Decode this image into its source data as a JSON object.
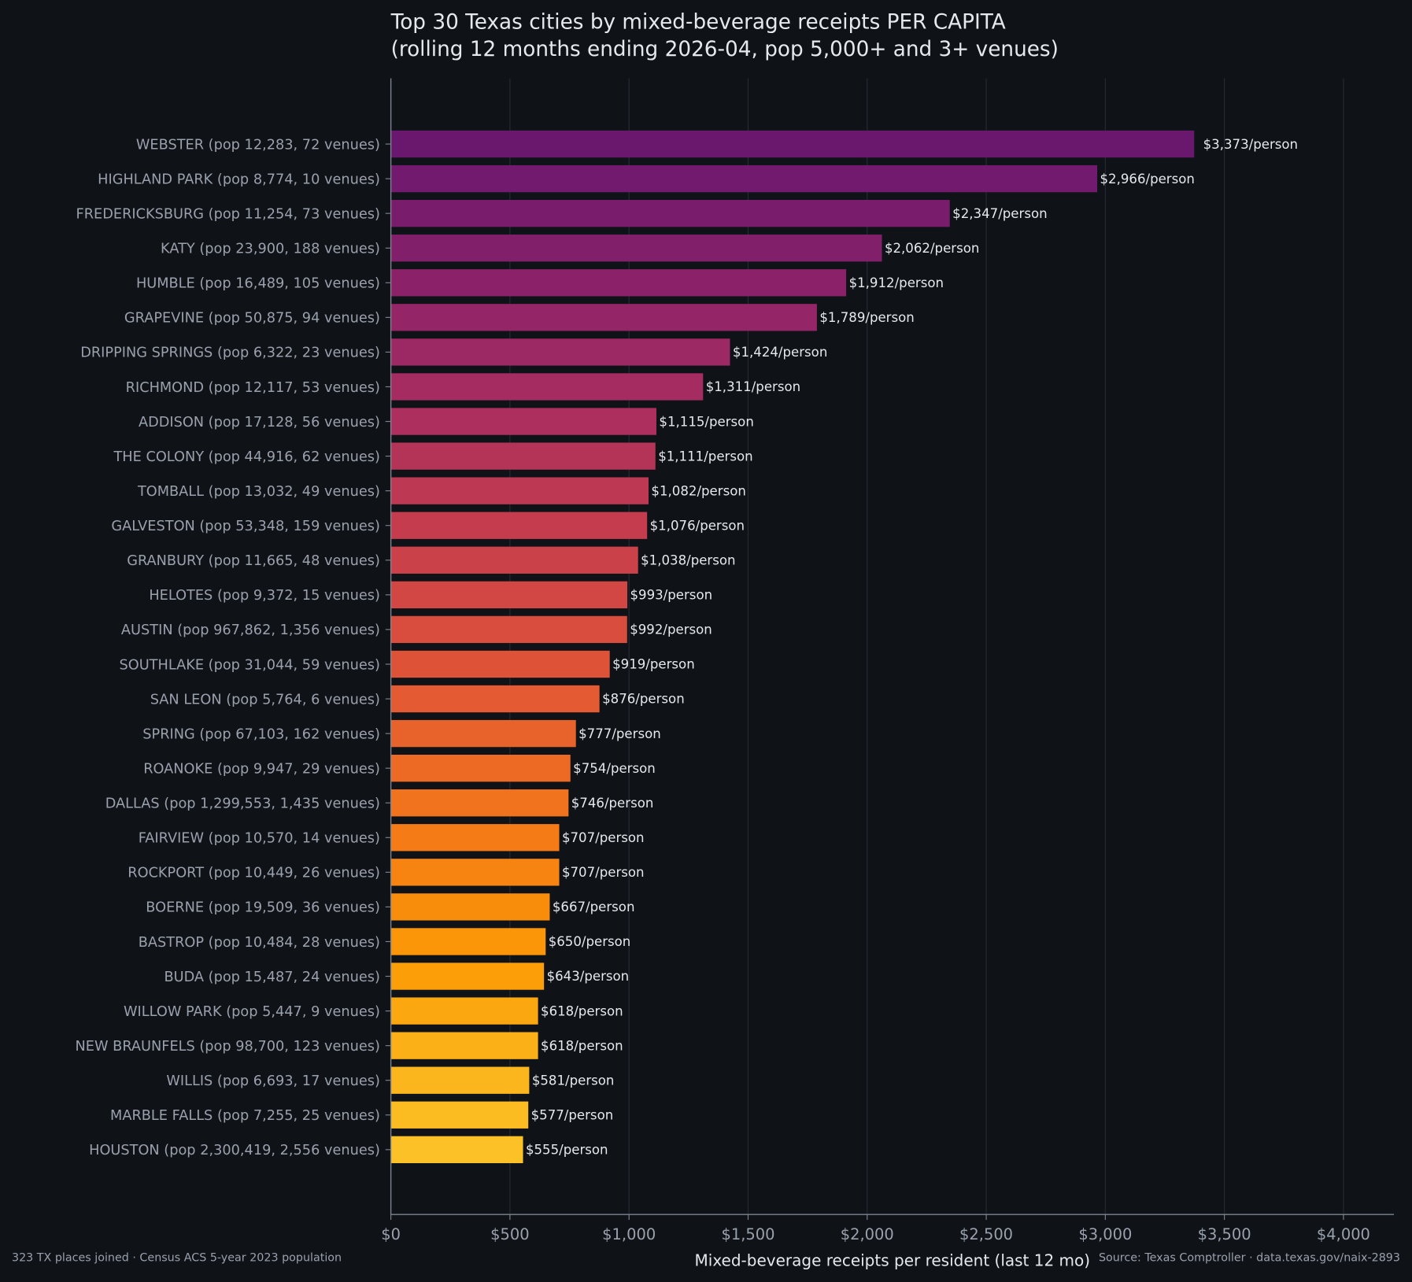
{
  "chart_data": {
    "type": "bar",
    "orientation": "horizontal",
    "title": "Top 30 Texas cities by mixed-beverage receipts PER CAPITA",
    "subtitle": "(rolling 12 months ending 2026-04, pop 5,000+ and 3+ venues)",
    "xlabel": "Mixed-beverage receipts per resident (last 12 mo)",
    "ylabel": "",
    "xlim": [
      0,
      4200
    ],
    "x_ticks": [
      0,
      500,
      1000,
      1500,
      2000,
      2500,
      3000,
      3500,
      4000
    ],
    "x_tick_labels": [
      "$0",
      "$500",
      "$1,000",
      "$1,500",
      "$2,000",
      "$2,500",
      "$3,000",
      "$3,500",
      "$4,000"
    ],
    "grid": "vertical",
    "categories": [
      "WEBSTER  (pop 12,283, 72 venues)",
      "HIGHLAND PARK  (pop 8,774, 10 venues)",
      "FREDERICKSBURG  (pop 11,254, 73 venues)",
      "KATY  (pop 23,900, 188 venues)",
      "HUMBLE  (pop 16,489, 105 venues)",
      "GRAPEVINE  (pop 50,875, 94 venues)",
      "DRIPPING SPRINGS  (pop 6,322, 23 venues)",
      "RICHMOND  (pop 12,117, 53 venues)",
      "ADDISON  (pop 17,128, 56 venues)",
      "THE COLONY  (pop 44,916, 62 venues)",
      "TOMBALL  (pop 13,032, 49 venues)",
      "GALVESTON  (pop 53,348, 159 venues)",
      "GRANBURY  (pop 11,665, 48 venues)",
      "HELOTES  (pop 9,372, 15 venues)",
      "AUSTIN  (pop 967,862, 1,356 venues)",
      "SOUTHLAKE  (pop 31,044, 59 venues)",
      "SAN LEON  (pop 5,764, 6 venues)",
      "SPRING  (pop 67,103, 162 venues)",
      "ROANOKE  (pop 9,947, 29 venues)",
      "DALLAS  (pop 1,299,553, 1,435 venues)",
      "FAIRVIEW  (pop 10,570, 14 venues)",
      "ROCKPORT  (pop 10,449, 26 venues)",
      "BOERNE  (pop 19,509, 36 venues)",
      "BASTROP  (pop 10,484, 28 venues)",
      "BUDA  (pop 15,487, 24 venues)",
      "WILLOW PARK  (pop 5,447, 9 venues)",
      "NEW BRAUNFELS  (pop 98,700, 123 venues)",
      "WILLIS  (pop 6,693, 17 venues)",
      "MARBLE FALLS  (pop 7,255, 25 venues)",
      "HOUSTON  (pop 2,300,419, 2,556 venues)"
    ],
    "values": [
      3373,
      2966,
      2347,
      2062,
      1912,
      1789,
      1424,
      1311,
      1115,
      1111,
      1082,
      1076,
      1038,
      993,
      992,
      919,
      876,
      777,
      754,
      746,
      707,
      707,
      667,
      650,
      643,
      618,
      618,
      581,
      577,
      555
    ],
    "data_labels": [
      "$3,373/person",
      "$2,966/person",
      "$2,347/person",
      "$2,062/person",
      "$1,912/person",
      "$1,789/person",
      "$1,424/person",
      "$1,311/person",
      "$1,115/person",
      "$1,111/person",
      "$1,082/person",
      "$1,076/person",
      "$1,038/person",
      "$993/person",
      "$992/person",
      "$919/person",
      "$876/person",
      "$777/person",
      "$754/person",
      "$746/person",
      "$707/person",
      "$707/person",
      "$667/person",
      "$650/person",
      "$643/person",
      "$618/person",
      "$618/person",
      "$581/person",
      "$577/person",
      "$555/person"
    ],
    "color_stops": [
      "#6a176e",
      "#7f1e6c",
      "#962666",
      "#ab2f5e",
      "#c13a50",
      "#d34743",
      "#e35933",
      "#ef6e21",
      "#f7850f",
      "#fb9c06",
      "#fbb31a",
      "#fbc127"
    ],
    "footnote_left": "323 TX places joined · Census ACS 5-year 2023 population",
    "footnote_right": "Source: Texas Comptroller · data.texas.gov/naix-2893"
  },
  "colors": {
    "background": "#0f1318",
    "axis": "#7d8490",
    "grid": "#252b35"
  }
}
